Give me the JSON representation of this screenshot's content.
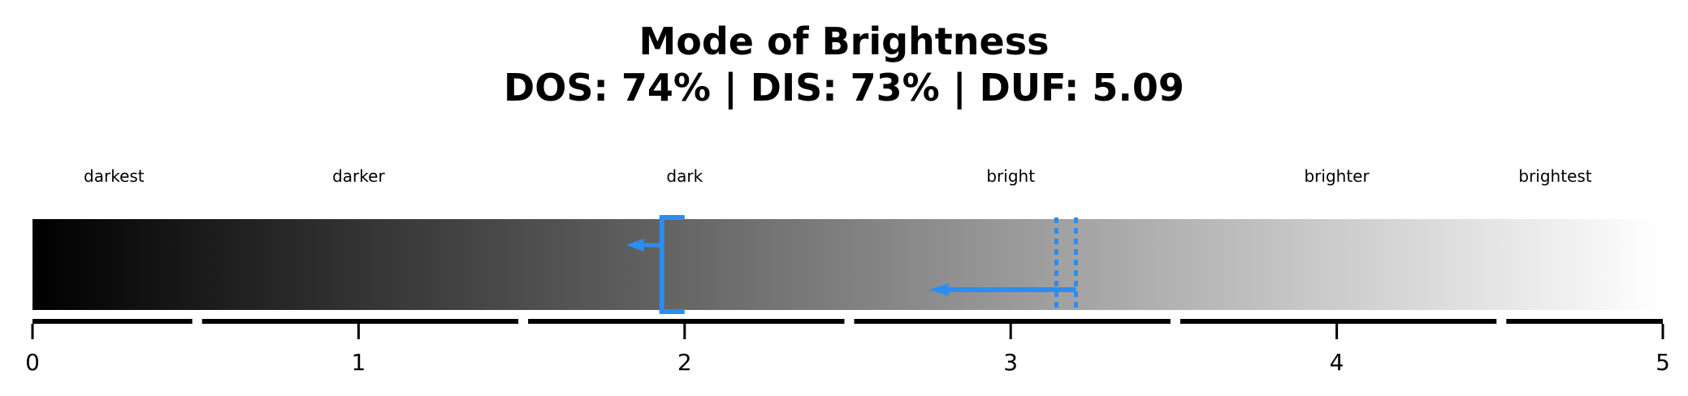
{
  "chart_data": {
    "type": "gradient-scale",
    "title_line1": "Mode of Brightness",
    "title_line2": "DOS: 74% | DIS: 73% | DUF: 5.09",
    "xlim": [
      0,
      5
    ],
    "ticks": [
      "0",
      "1",
      "2",
      "3",
      "4",
      "5"
    ],
    "tick_values": [
      0,
      1,
      2,
      3,
      4,
      5
    ],
    "categories": [
      {
        "label": "darkest",
        "x": 0.25
      },
      {
        "label": "darker",
        "x": 1.0
      },
      {
        "label": "dark",
        "x": 2.0
      },
      {
        "label": "bright",
        "x": 3.0
      },
      {
        "label": "brighter",
        "x": 4.0
      },
      {
        "label": "brightest",
        "x": 4.67
      }
    ],
    "segments": [
      [
        0,
        0.49
      ],
      [
        0.52,
        1.49
      ],
      [
        1.52,
        2.49
      ],
      [
        2.52,
        3.49
      ],
      [
        3.52,
        4.49
      ],
      [
        4.52,
        5.0
      ]
    ],
    "gradient": {
      "from": "#000000",
      "to": "#ffffff"
    },
    "accent_color": "#2b8df0",
    "markers": [
      {
        "type": "solid-bracket",
        "x": 2.0,
        "bracket_left": 1.93,
        "arrow_to": 1.82,
        "arrow_level": "upper"
      },
      {
        "type": "dotted-bracket",
        "x": 3.2,
        "bracket_left": 3.14,
        "arrow_to": 2.75,
        "arrow_level": "lower"
      }
    ]
  }
}
